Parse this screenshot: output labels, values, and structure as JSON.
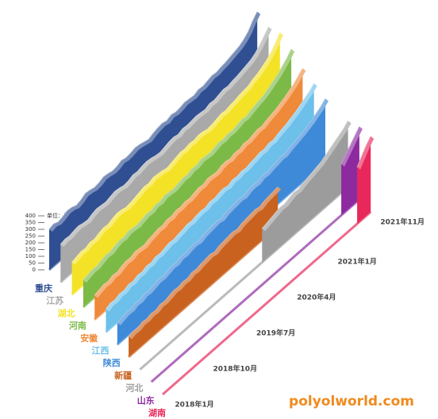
{
  "chart_data": {
    "type": "area3d",
    "y_unit": "单位：元/吨",
    "watermark": "polyolworld.com",
    "categories": [
      "2018年1月",
      null,
      null,
      null,
      null,
      null,
      null,
      null,
      null,
      "2018年10月",
      null,
      null,
      null,
      null,
      null,
      null,
      null,
      null,
      "2019年7月",
      null,
      null,
      null,
      null,
      null,
      null,
      null,
      null,
      "2020年4月",
      null,
      null,
      null,
      null,
      null,
      null,
      null,
      null,
      "2021年1月",
      null,
      null,
      null,
      null,
      null,
      null,
      null,
      null,
      null,
      "2021年11月"
    ],
    "ylim": [
      0,
      400
    ],
    "yticks": [
      0,
      50,
      100,
      150,
      200,
      250,
      300,
      350,
      400
    ],
    "series": [
      {
        "name": "重庆",
        "color": "#2f4f92",
        "values": [
          300,
          310,
          295,
          305,
          320,
          315,
          300,
          310,
          330,
          325,
          315,
          320,
          335,
          330,
          320,
          325,
          340,
          330,
          335,
          345,
          340,
          330,
          320,
          335,
          345,
          350,
          340,
          355,
          345,
          350,
          360,
          355,
          350,
          365,
          360,
          370,
          380,
          375,
          385,
          390,
          400,
          410,
          420,
          440,
          470,
          520,
          560
        ]
      },
      {
        "name": "江苏",
        "color": "#a9a9a9",
        "values": [
          280,
          290,
          285,
          295,
          300,
          290,
          285,
          300,
          310,
          305,
          300,
          310,
          320,
          315,
          305,
          310,
          325,
          320,
          330,
          335,
          330,
          320,
          315,
          325,
          335,
          340,
          330,
          345,
          340,
          345,
          350,
          345,
          340,
          355,
          350,
          360,
          370,
          365,
          375,
          380,
          390,
          400,
          410,
          430,
          460,
          500,
          540
        ]
      },
      {
        "name": "湖北",
        "color": "#f4e226",
        "values": [
          240,
          250,
          260,
          255,
          270,
          265,
          280,
          290,
          285,
          300,
          310,
          305,
          295,
          300,
          310,
          320,
          330,
          325,
          340,
          335,
          330,
          320,
          330,
          340,
          350,
          345,
          355,
          350,
          360,
          355,
          345,
          350,
          360,
          370,
          365,
          375,
          380,
          390,
          395,
          400,
          420,
          430,
          450,
          470,
          500,
          540,
          590
        ]
      },
      {
        "name": "河南",
        "color": "#7cba48",
        "values": [
          200,
          210,
          220,
          215,
          230,
          240,
          235,
          250,
          260,
          255,
          270,
          265,
          260,
          270,
          280,
          275,
          290,
          285,
          300,
          295,
          290,
          300,
          310,
          305,
          320,
          315,
          330,
          325,
          320,
          330,
          340,
          335,
          345,
          340,
          350,
          360,
          355,
          370,
          380,
          390,
          400,
          420,
          440,
          460,
          490,
          520,
          560
        ]
      },
      {
        "name": "安徽",
        "color": "#ef8a3a",
        "values": [
          180,
          190,
          200,
          195,
          210,
          205,
          220,
          230,
          225,
          240,
          235,
          230,
          245,
          250,
          260,
          255,
          270,
          265,
          280,
          275,
          285,
          280,
          290,
          300,
          295,
          310,
          305,
          300,
          315,
          320,
          310,
          325,
          320,
          335,
          330,
          340,
          350,
          345,
          360,
          370,
          380,
          395,
          410,
          430,
          450,
          480,
          510
        ]
      },
      {
        "name": "江西",
        "color": "#6cc0ea",
        "values": [
          170,
          185,
          180,
          195,
          190,
          205,
          200,
          215,
          210,
          225,
          220,
          235,
          230,
          240,
          250,
          245,
          255,
          260,
          270,
          265,
          275,
          280,
          275,
          290,
          285,
          295,
          300,
          290,
          305,
          300,
          310,
          305,
          315,
          320,
          330,
          325,
          340,
          335,
          350,
          360,
          370,
          385,
          400,
          420,
          440,
          460,
          490
        ]
      },
      {
        "name": "陕西",
        "color": "#3f8ad8",
        "values": [
          160,
          170,
          180,
          175,
          190,
          185,
          200,
          195,
          205,
          215,
          210,
          220,
          230,
          225,
          240,
          235,
          245,
          250,
          240,
          255,
          260,
          265,
          270,
          260,
          275,
          280,
          285,
          290,
          280,
          295,
          300,
          295,
          310,
          305,
          315,
          320,
          330,
          325,
          340,
          350,
          360,
          370,
          385,
          400,
          420,
          440,
          470
        ]
      },
      {
        "name": "新疆",
        "color": "#c9621f",
        "values": [
          150,
          160,
          155,
          170,
          165,
          175,
          170,
          185,
          180,
          190,
          200,
          195,
          205,
          200,
          215,
          210,
          220,
          225,
          230,
          220,
          235,
          240,
          245,
          250,
          240,
          255,
          260,
          265,
          270,
          260,
          275,
          280,
          285,
          290,
          null,
          null,
          null,
          null,
          null,
          null,
          null,
          null,
          null,
          null,
          null,
          null,
          null
        ]
      },
      {
        "name": "河北",
        "color": "#9c9c9c",
        "values": [
          null,
          null,
          null,
          null,
          null,
          null,
          null,
          null,
          null,
          null,
          null,
          null,
          null,
          null,
          null,
          null,
          null,
          null,
          null,
          null,
          null,
          null,
          null,
          null,
          null,
          null,
          null,
          250,
          260,
          270,
          280,
          290,
          285,
          300,
          310,
          305,
          320,
          330,
          340,
          350,
          360,
          380,
          400,
          420,
          440,
          460,
          490
        ]
      },
      {
        "name": "山东",
        "color": "#8d2aa0",
        "values": [
          null,
          null,
          null,
          null,
          null,
          null,
          null,
          null,
          null,
          null,
          null,
          null,
          null,
          null,
          null,
          null,
          null,
          null,
          null,
          null,
          null,
          null,
          null,
          null,
          null,
          null,
          null,
          null,
          null,
          null,
          null,
          null,
          null,
          null,
          null,
          null,
          null,
          null,
          null,
          null,
          null,
          null,
          380,
          420,
          460,
          500,
          540
        ]
      },
      {
        "name": "湖南",
        "color": "#e8285a",
        "values": [
          null,
          null,
          null,
          null,
          null,
          null,
          null,
          null,
          null,
          null,
          null,
          null,
          null,
          null,
          null,
          null,
          null,
          null,
          null,
          null,
          null,
          null,
          null,
          null,
          null,
          null,
          null,
          null,
          null,
          null,
          null,
          null,
          null,
          null,
          null,
          null,
          null,
          null,
          null,
          null,
          null,
          null,
          null,
          420,
          470,
          520,
          560
        ]
      }
    ]
  }
}
